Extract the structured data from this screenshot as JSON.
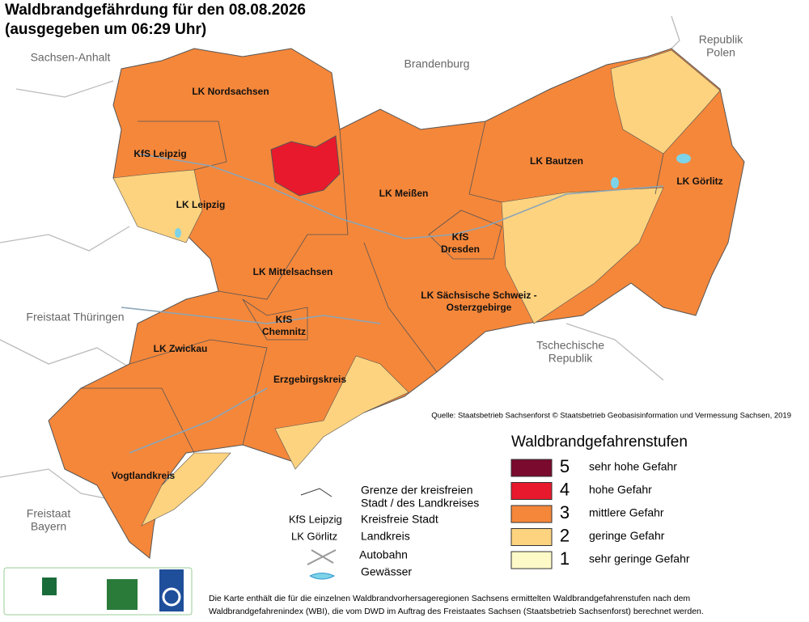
{
  "header": {
    "title_lines": [
      "Waldbrandgefährdung  für den  08.08.2026",
      "(ausgegeben um 06:29 Uhr)"
    ]
  },
  "neighbors": [
    {
      "lines": [
        "Sachsen-Anhalt"
      ]
    },
    {
      "lines": [
        "Brandenburg"
      ]
    },
    {
      "lines": [
        "Republik",
        "Polen"
      ]
    },
    {
      "lines": [
        "Freistaat Thüringen"
      ]
    },
    {
      "lines": [
        "Tschechische",
        "Republik"
      ]
    },
    {
      "lines": [
        "Freistaat",
        "Bayern"
      ]
    }
  ],
  "districts": [
    {
      "lines": [
        "LK Nordsachsen"
      ]
    },
    {
      "lines": [
        "KfS Leipzig"
      ]
    },
    {
      "lines": [
        "LK Leipzig"
      ]
    },
    {
      "lines": [
        "LK Meißen"
      ]
    },
    {
      "lines": [
        "LK Bautzen"
      ]
    },
    {
      "lines": [
        "LK Görlitz"
      ]
    },
    {
      "lines": [
        "KfS",
        "Dresden"
      ]
    },
    {
      "lines": [
        "LK Mittelsachsen"
      ]
    },
    {
      "lines": [
        "LK Sächsische Schweiz -",
        "Osterzgebirge"
      ]
    },
    {
      "lines": [
        "KfS",
        "Chemnitz"
      ]
    },
    {
      "lines": [
        "LK Zwickau"
      ]
    },
    {
      "lines": [
        "Erzgebirgskreis"
      ]
    },
    {
      "lines": [
        "Vogtlandkreis"
      ]
    }
  ],
  "source": "Quelle: Staatsbetrieb Sachsenforst  © Staatsbetrieb Geobasisinformation und Vermessung Sachsen, 2019",
  "legend": {
    "title": "Waldbrandgefahrenstufen",
    "items": [
      {
        "level": 5,
        "label": "sehr hohe Gefahr",
        "color": "#7a0a2e"
      },
      {
        "level": 4,
        "label": "hohe Gefahr",
        "color": "#e8192c"
      },
      {
        "level": 3,
        "label": "mittlere Gefahr",
        "color": "#f5873a"
      },
      {
        "level": 2,
        "label": "geringe Gefahr",
        "color": "#fed37f"
      },
      {
        "level": 1,
        "label": "sehr geringe Gefahr",
        "color": "#fefac8"
      }
    ]
  },
  "key": {
    "boundary": [
      "Grenze der kreisfreien",
      "Stadt / des Landkreises"
    ],
    "city_example": "KfS Leipzig",
    "city": "Kreisfreie Stadt",
    "district_example": "LK Görlitz",
    "district": "Landkreis",
    "motorway": "Autobahn",
    "water": "Gewässer"
  },
  "logos": [
    "Sachsenforst",
    "mais",
    "DWD"
  ],
  "footer": [
    "Die Karte enthält die für die einzelnen Waldbrandvorhersageregionen Sachsens ermittelten Waldbrandgefahrenstufen nach dem",
    "Waldbrandgefahrenindex (WBI), die vom DWD im Auftrag des Freistaates Sachsen (Staatsbetrieb Sachsenforst) berechnet werden."
  ]
}
